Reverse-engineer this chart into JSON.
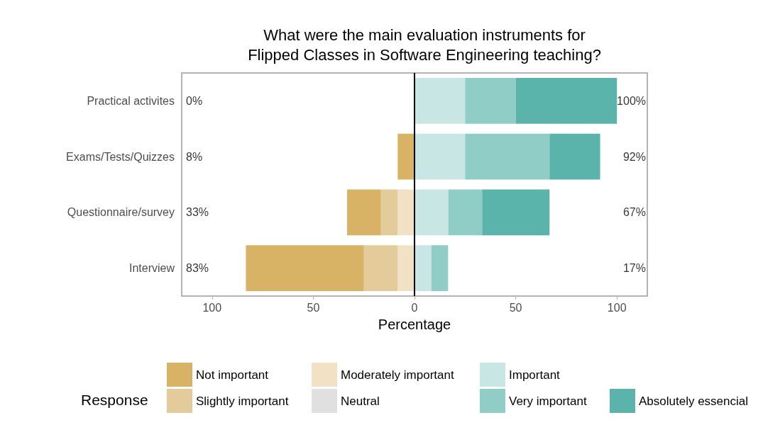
{
  "chart_data": {
    "type": "bar",
    "orientation": "horizontal",
    "stacked": true,
    "title": "What were the main evaluation instruments for\nFlipped Classes in Software Engineering teaching?",
    "xlabel": "Percentage",
    "legend_title": "Response",
    "legend": "bottom",
    "grid": false,
    "categories": [
      "Practical activites",
      "Exams/Tests/Quizzes",
      "Questionnaire/survey",
      "Interview"
    ],
    "series": [
      {
        "name": "Moderately important",
        "color": "#f1e2c6",
        "values": [
          0,
          0,
          -8.3,
          -8.3
        ]
      },
      {
        "name": "Slightly important",
        "color": "#e3cc99",
        "values": [
          0,
          0,
          -8.3,
          -16.7
        ]
      },
      {
        "name": "Not important",
        "color": "#d8b365",
        "values": [
          0,
          -8.3,
          -16.7,
          -58.3
        ]
      },
      {
        "name": "Neutral",
        "color": "#e0e0e0",
        "values": [
          0,
          0,
          0,
          0
        ]
      },
      {
        "name": "Important",
        "color": "#c7e6e4",
        "values": [
          25,
          25,
          16.7,
          8.3
        ]
      },
      {
        "name": "Very important",
        "color": "#90cdc6",
        "values": [
          25,
          41.7,
          16.7,
          8.3
        ]
      },
      {
        "name": "Absolutely essencial",
        "color": "#5ab4ac",
        "values": [
          50,
          25,
          33.3,
          0
        ]
      }
    ],
    "xlim": [
      -115,
      115
    ],
    "xticks": [
      {
        "value": -100,
        "label": "100"
      },
      {
        "value": -50,
        "label": "50"
      },
      0,
      50,
      100
    ],
    "ref_lines": [
      {
        "axis": "x",
        "value": 0,
        "color": "#000000"
      }
    ],
    "annotations": [
      "0%",
      "8%",
      "33%",
      "83%",
      "100%",
      "92%",
      "67%",
      "17%"
    ]
  }
}
